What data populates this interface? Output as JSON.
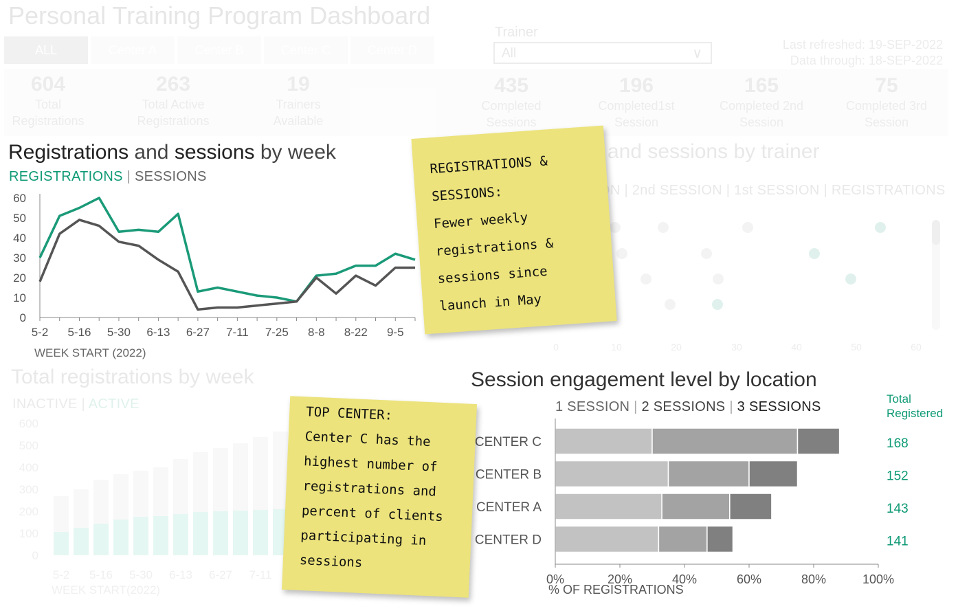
{
  "header": {
    "title": "Personal Training Program Dashboard",
    "tabs": [
      "ALL",
      "Center A",
      "Center B",
      "Center C",
      "Center D"
    ],
    "trainer_label": "Trainer",
    "trainer_value": "All",
    "refreshed": "Last refreshed: 19-SEP-2022",
    "data_through": "Data through: 18-SEP-2022"
  },
  "kpis": [
    {
      "value": "604",
      "label1": "Total",
      "label2": "Registrations"
    },
    {
      "value": "263",
      "label1": "Total Active",
      "label2": "Registrations"
    },
    {
      "value": "19",
      "label1": "Trainers",
      "label2": "Available"
    },
    {
      "value": "435",
      "label1": "Completed",
      "label2": "Sessions"
    },
    {
      "value": "196",
      "label1": "Completed1st",
      "label2": "Session"
    },
    {
      "value": "165",
      "label1": "Completed 2nd",
      "label2": "Session"
    },
    {
      "value": "75",
      "label1": "Completed 3rd",
      "label2": "Session"
    }
  ],
  "week_chart": {
    "title_a": "Registrations",
    "title_b": " and ",
    "title_c": "sessions",
    "title_d": " by week",
    "legend_reg": "REGISTRATIONS",
    "legend_sep": "|",
    "legend_ses": "SESSIONS",
    "xlabel": "WEEK START (2022)",
    "colors": {
      "registrations": "#1a9a78",
      "sessions": "#555555"
    }
  },
  "trainer_chart": {
    "title": "and sessions by trainer",
    "legend": "ON | 2nd SESSION | 1st SESSION | REGISTRATIONS",
    "x_ticks": [
      "0",
      "10",
      "20",
      "30",
      "40",
      "50",
      "60"
    ]
  },
  "total_chart": {
    "title": "Total registrations by week",
    "legend_inactive": "INACTIVE",
    "legend_active": "ACTIVE",
    "y_ticks": [
      "600",
      "500",
      "400",
      "300",
      "200",
      "100",
      "0"
    ],
    "x_ticks": [
      "5-2",
      "5-16",
      "5-30",
      "6-13",
      "6-27",
      "7-11"
    ],
    "xlabel": "WEEK START(2022)"
  },
  "engagement": {
    "title": "Session engagement level by location",
    "legend": [
      "1 SESSION",
      "2 SESSIONS",
      "3 SESSIONS"
    ],
    "sep": "|",
    "total_label1": "Total",
    "total_label2": "Registered",
    "xlabel": "% OF REGISTRATIONS",
    "colors": [
      "#c2c2c2",
      "#a3a3a3",
      "#808080"
    ]
  },
  "notes": {
    "note1": [
      "REGISTRATIONS &",
      "SESSIONS:",
      "Fewer weekly",
      "registrations &",
      "sessions since",
      "launch in May"
    ],
    "note2": [
      "TOP CENTER:",
      "Center C has the",
      "highest number of",
      "registrations and",
      "percent of clients",
      "participating in",
      "sessions"
    ]
  },
  "chart_data": [
    {
      "type": "line",
      "title": "Registrations and sessions by week",
      "xlabel": "WEEK START (2022)",
      "ylabel": "",
      "ylim": [
        0,
        60
      ],
      "y_ticks": [
        0,
        10,
        20,
        30,
        40,
        50,
        60
      ],
      "x": [
        "5-2",
        "5-9",
        "5-16",
        "5-23",
        "5-30",
        "6-6",
        "6-13",
        "6-20",
        "6-27",
        "7-4",
        "7-11",
        "7-18",
        "7-25",
        "8-1",
        "8-8",
        "8-15",
        "8-22",
        "8-29",
        "9-5",
        "9-12"
      ],
      "x_tick_labels": [
        "5-2",
        "5-16",
        "5-30",
        "6-13",
        "6-27",
        "7-11",
        "7-25",
        "8-8",
        "8-22",
        "9-5"
      ],
      "series": [
        {
          "name": "REGISTRATIONS",
          "values": [
            30,
            51,
            55,
            60,
            43,
            44,
            43,
            52,
            13,
            15,
            13,
            11,
            10,
            8,
            21,
            22,
            26,
            26,
            32,
            29
          ]
        },
        {
          "name": "SESSIONS",
          "values": [
            18,
            42,
            49,
            46,
            38,
            36,
            29,
            23,
            4,
            5,
            5,
            6,
            7,
            8,
            20,
            12,
            21,
            16,
            25,
            25
          ]
        }
      ]
    },
    {
      "type": "bar",
      "title": "Session engagement level by location",
      "xlabel": "% OF REGISTRATIONS",
      "xlim": [
        0,
        100
      ],
      "x_ticks": [
        "0%",
        "20%",
        "40%",
        "60%",
        "80%",
        "100%"
      ],
      "categories": [
        "CENTER C",
        "CENTER B",
        "CENTER A",
        "CENTER D"
      ],
      "series": [
        {
          "name": "1 SESSION",
          "values": [
            30,
            35,
            33,
            32
          ]
        },
        {
          "name": "2 SESSIONS",
          "values": [
            45,
            25,
            21,
            15
          ]
        },
        {
          "name": "3 SESSIONS",
          "values": [
            13,
            15,
            13,
            8
          ]
        }
      ],
      "totals": [
        "168",
        "152",
        "143",
        "141"
      ]
    }
  ]
}
